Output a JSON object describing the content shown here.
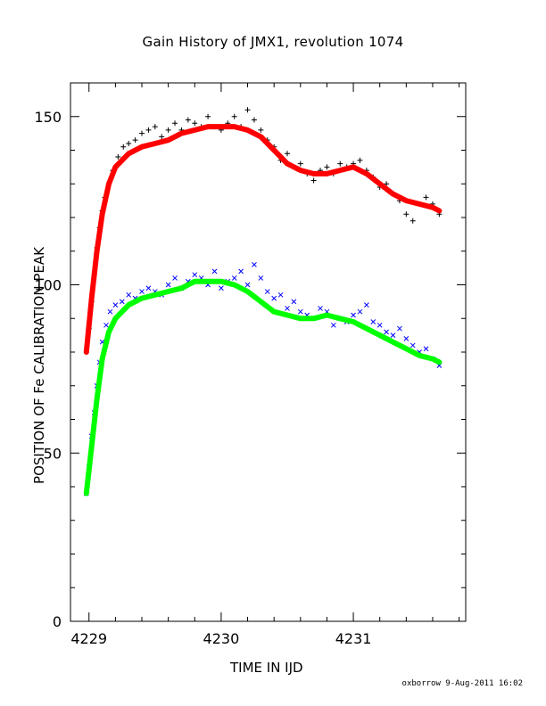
{
  "page": {
    "title": "Gain History of JMX1, revolution 1074",
    "footer": "oxborrow  9-Aug-2011 16:02"
  },
  "chart_data": {
    "type": "scatter",
    "title": "Gain History of JMX1, revolution 1074",
    "xlabel": "TIME IN IJD",
    "ylabel": "POSITION OF Fe CALIBRATION PEAK",
    "xlim": [
      4228.86,
      4231.85
    ],
    "ylim": [
      0,
      160
    ],
    "x_ticks": [
      4229,
      4230,
      4231
    ],
    "y_ticks": [
      0,
      50,
      100,
      150
    ],
    "grid": false,
    "colors": {
      "upper_points": "#000000",
      "upper_fit": "#ff0000",
      "lower_points": "#0000ff",
      "lower_fit": "#00ff00"
    },
    "series": [
      {
        "marker": "+",
        "x": [
          4228.98,
          4229.0,
          4229.02,
          4229.04,
          4229.06,
          4229.08,
          4229.1,
          4229.12,
          4229.15,
          4229.18,
          4229.22,
          4229.26,
          4229.3,
          4229.35,
          4229.4,
          4229.45,
          4229.5,
          4229.55,
          4229.6,
          4229.65,
          4229.7,
          4229.75,
          4229.8,
          4229.85,
          4229.9,
          4229.95,
          4230.0,
          4230.05,
          4230.1,
          4230.15,
          4230.2,
          4230.25,
          4230.3,
          4230.35,
          4230.4,
          4230.45,
          4230.5,
          4230.55,
          4230.6,
          4230.65,
          4230.7,
          4230.75,
          4230.8,
          4230.85,
          4230.9,
          4230.95,
          4231.0,
          4231.05,
          4231.1,
          4231.15,
          4231.2,
          4231.25,
          4231.3,
          4231.35,
          4231.4,
          4231.45,
          4231.5,
          4231.55,
          4231.6,
          4231.65
        ],
        "y": [
          80,
          87,
          95,
          103,
          111,
          117,
          122,
          126,
          130,
          134,
          138,
          141,
          142,
          143,
          145,
          146,
          147,
          144,
          146,
          148,
          146,
          149,
          148,
          147,
          150,
          147,
          146,
          148,
          150,
          147,
          152,
          149,
          146,
          143,
          141,
          137,
          139,
          135,
          136,
          133,
          131,
          134,
          135,
          133,
          136,
          135,
          136,
          137,
          134,
          132,
          129,
          130,
          127,
          125,
          121,
          119,
          124,
          126,
          124,
          121
        ]
      },
      {
        "marker": "fit",
        "x": [
          4228.98,
          4229.02,
          4229.06,
          4229.1,
          4229.15,
          4229.2,
          4229.3,
          4229.4,
          4229.5,
          4229.6,
          4229.7,
          4229.8,
          4229.9,
          4230.0,
          4230.1,
          4230.2,
          4230.3,
          4230.4,
          4230.5,
          4230.6,
          4230.7,
          4230.8,
          4230.9,
          4231.0,
          4231.1,
          4231.2,
          4231.3,
          4231.4,
          4231.5,
          4231.6,
          4231.65
        ],
        "y": [
          80,
          96,
          110,
          121,
          130,
          135,
          139,
          141,
          142,
          143,
          145,
          146,
          147,
          147,
          147,
          146,
          144,
          140,
          136,
          134,
          133,
          133,
          134,
          135,
          133,
          130,
          127,
          125,
          124,
          123,
          122
        ]
      },
      {
        "marker": "x",
        "x": [
          4228.98,
          4229.0,
          4229.02,
          4229.04,
          4229.06,
          4229.08,
          4229.1,
          4229.13,
          4229.16,
          4229.2,
          4229.25,
          4229.3,
          4229.35,
          4229.4,
          4229.45,
          4229.5,
          4229.55,
          4229.6,
          4229.65,
          4229.7,
          4229.75,
          4229.8,
          4229.85,
          4229.9,
          4229.95,
          4230.0,
          4230.05,
          4230.1,
          4230.15,
          4230.2,
          4230.25,
          4230.3,
          4230.35,
          4230.4,
          4230.45,
          4230.5,
          4230.55,
          4230.6,
          4230.65,
          4230.7,
          4230.75,
          4230.8,
          4230.85,
          4230.9,
          4230.95,
          4231.0,
          4231.05,
          4231.1,
          4231.15,
          4231.2,
          4231.25,
          4231.3,
          4231.35,
          4231.4,
          4231.45,
          4231.5,
          4231.55,
          4231.6,
          4231.65
        ],
        "y": [
          38,
          46,
          55,
          62,
          70,
          77,
          83,
          88,
          92,
          94,
          95,
          97,
          96,
          98,
          99,
          98,
          97,
          100,
          102,
          99,
          101,
          103,
          102,
          100,
          104,
          99,
          101,
          102,
          104,
          100,
          106,
          102,
          98,
          96,
          97,
          93,
          95,
          92,
          91,
          90,
          93,
          92,
          88,
          90,
          89,
          91,
          92,
          94,
          89,
          88,
          86,
          85,
          87,
          84,
          82,
          80,
          81,
          78,
          76
        ]
      },
      {
        "marker": "fit",
        "x": [
          4228.98,
          4229.02,
          4229.06,
          4229.1,
          4229.15,
          4229.2,
          4229.3,
          4229.4,
          4229.5,
          4229.6,
          4229.7,
          4229.8,
          4229.9,
          4230.0,
          4230.1,
          4230.2,
          4230.3,
          4230.4,
          4230.5,
          4230.6,
          4230.7,
          4230.8,
          4230.9,
          4231.0,
          4231.1,
          4231.2,
          4231.3,
          4231.4,
          4231.5,
          4231.6,
          4231.65
        ],
        "y": [
          38,
          52,
          66,
          78,
          86,
          90,
          94,
          96,
          97,
          98,
          99,
          101,
          101,
          101,
          100,
          98,
          95,
          92,
          91,
          90,
          90,
          91,
          90,
          89,
          87,
          85,
          83,
          81,
          79,
          78,
          77
        ]
      }
    ]
  }
}
